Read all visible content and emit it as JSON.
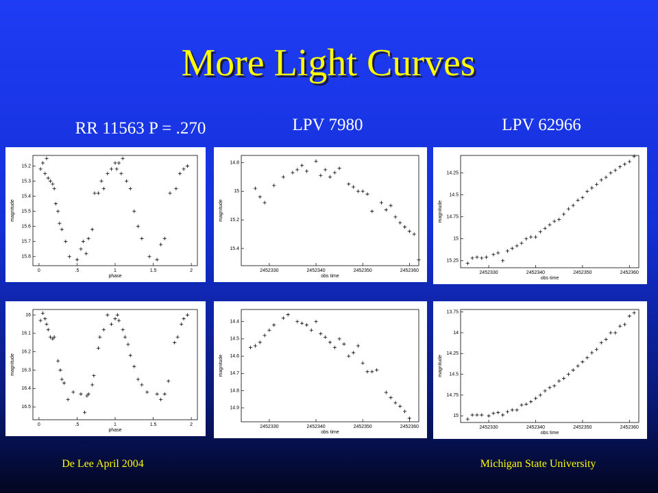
{
  "title": "More Light Curves",
  "column_labels": [
    "RR 11563 P = .270",
    "LPV 7980",
    "LPV 62966"
  ],
  "footer": {
    "left": "De Lee April 2004",
    "right": "Michigan State University"
  },
  "chart_data": [
    {
      "type": "scatter",
      "xlabel": "phase",
      "ylabel": "magnitude",
      "y_inverted": true,
      "xlim": [
        -0.08,
        2.08
      ],
      "xticks": [
        0,
        {
          "value": 0.5,
          "label": ".5"
        },
        1,
        1.5,
        2
      ],
      "ylim": [
        15.13,
        15.86
      ],
      "yticks": [
        15.2,
        15.3,
        15.4,
        15.5,
        15.6,
        15.7,
        15.8
      ],
      "x": [
        0.02,
        0.05,
        0.08,
        0.1,
        0.12,
        0.15,
        0.18,
        0.2,
        0.22,
        0.25,
        0.27,
        0.3,
        0.35,
        0.4,
        0.5,
        0.55,
        0.58,
        0.62,
        0.65,
        0.7,
        0.73,
        0.78,
        0.82,
        0.85,
        0.9,
        0.95,
        1.0,
        1.02,
        1.05,
        1.08,
        1.1,
        1.15,
        1.2,
        1.25,
        1.3,
        1.35,
        1.45,
        1.55,
        1.6,
        1.65,
        1.72,
        1.8,
        1.85,
        1.9,
        1.95
      ],
      "values": [
        15.22,
        15.18,
        15.25,
        15.15,
        15.28,
        15.3,
        15.32,
        15.35,
        15.45,
        15.5,
        15.58,
        15.62,
        15.7,
        15.8,
        15.82,
        15.75,
        15.7,
        15.78,
        15.68,
        15.62,
        15.38,
        15.38,
        15.3,
        15.35,
        15.25,
        15.22,
        15.18,
        15.22,
        15.18,
        15.25,
        15.15,
        15.3,
        15.35,
        15.5,
        15.6,
        15.68,
        15.8,
        15.82,
        15.72,
        15.68,
        15.38,
        15.35,
        15.25,
        15.22,
        15.2
      ]
    },
    {
      "type": "scatter",
      "xlabel": "obs time",
      "ylabel": "magnitude",
      "y_inverted": true,
      "xlim": [
        2452324,
        2452362
      ],
      "xticks": [
        2452330,
        2452340,
        2452350,
        2452360
      ],
      "ylim": [
        14.75,
        15.52
      ],
      "yticks": [
        14.8,
        15,
        15.2,
        15.4
      ],
      "x": [
        2452327,
        2452328,
        2452329,
        2452331,
        2452333,
        2452335,
        2452336,
        2452337,
        2452338,
        2452340,
        2452341,
        2452342,
        2452343,
        2452344,
        2452345,
        2452347,
        2452348,
        2452349,
        2452350,
        2452351,
        2452352,
        2452354,
        2452355,
        2452356,
        2452357,
        2452358,
        2452359,
        2452360,
        2452361,
        2452362
      ],
      "values": [
        14.98,
        15.04,
        15.08,
        14.96,
        14.9,
        14.87,
        14.85,
        14.82,
        14.86,
        14.79,
        14.89,
        14.85,
        14.9,
        14.87,
        14.84,
        14.95,
        14.97,
        15.0,
        15.0,
        15.02,
        15.14,
        15.08,
        15.13,
        15.1,
        15.18,
        15.22,
        15.25,
        15.28,
        15.3,
        15.48
      ]
    },
    {
      "type": "scatter",
      "xlabel": "obs time",
      "ylabel": "magnitude",
      "y_inverted": true,
      "xlim": [
        2452324,
        2452362
      ],
      "xticks": [
        2452330,
        2452340,
        2452350,
        2452360
      ],
      "ylim": [
        14.05,
        15.33
      ],
      "yticks": [
        14.25,
        14.5,
        14.75,
        15,
        15.25
      ],
      "x": [
        2452325.5,
        2452326.5,
        2452327.5,
        2452328.5,
        2452329.5,
        2452331,
        2452332,
        2452333,
        2452334,
        2452335,
        2452336,
        2452337,
        2452338,
        2452339,
        2452340,
        2452341,
        2452342,
        2452343,
        2452344,
        2452345,
        2452346,
        2452347,
        2452348,
        2452349,
        2452350,
        2452351,
        2452352,
        2452353,
        2452354,
        2452355,
        2452356,
        2452357,
        2452358,
        2452359,
        2452360,
        2452361
      ],
      "values": [
        15.28,
        15.22,
        15.21,
        15.22,
        15.21,
        15.18,
        15.16,
        15.25,
        15.14,
        15.11,
        15.08,
        15.05,
        15.0,
        14.98,
        14.98,
        14.92,
        14.88,
        14.84,
        14.8,
        14.78,
        14.72,
        14.66,
        14.62,
        14.56,
        14.53,
        14.46,
        14.42,
        14.38,
        14.33,
        14.3,
        14.25,
        14.22,
        14.18,
        14.15,
        14.12,
        14.06
      ]
    },
    {
      "type": "scatter",
      "xlabel": "phase",
      "ylabel": "magnitude",
      "y_inverted": true,
      "xlim": [
        -0.08,
        2.08
      ],
      "xticks": [
        0,
        {
          "value": 0.5,
          "label": ".5"
        },
        1,
        1.5,
        2
      ],
      "ylim": [
        15.97,
        16.57
      ],
      "yticks": [
        16,
        16.1,
        16.2,
        16.3,
        16.4,
        16.5
      ],
      "x": [
        0.02,
        0.05,
        0.08,
        0.1,
        0.12,
        0.15,
        0.18,
        0.2,
        0.25,
        0.28,
        0.3,
        0.33,
        0.38,
        0.45,
        0.55,
        0.6,
        0.63,
        0.65,
        0.7,
        0.72,
        0.78,
        0.8,
        0.85,
        0.9,
        0.95,
        1.0,
        1.03,
        1.05,
        1.1,
        1.13,
        1.17,
        1.2,
        1.25,
        1.3,
        1.35,
        1.42,
        1.55,
        1.6,
        1.65,
        1.7,
        1.78,
        1.82,
        1.87,
        1.9,
        1.95
      ],
      "values": [
        16.03,
        15.99,
        16.02,
        16.05,
        16.08,
        16.12,
        16.13,
        16.12,
        16.25,
        16.3,
        16.35,
        16.37,
        16.46,
        16.42,
        16.43,
        16.53,
        16.44,
        16.43,
        16.38,
        16.33,
        16.18,
        16.12,
        16.08,
        16.0,
        16.05,
        16.02,
        16.0,
        16.03,
        16.08,
        16.12,
        16.16,
        16.22,
        16.28,
        16.35,
        16.38,
        16.42,
        16.43,
        16.46,
        16.43,
        16.36,
        16.15,
        16.12,
        16.05,
        16.02,
        16.0
      ]
    },
    {
      "type": "scatter",
      "xlabel": "obs time",
      "ylabel": "magnitude",
      "y_inverted": true,
      "xlim": [
        2452324,
        2452362
      ],
      "xticks": [
        2452330,
        2452340,
        2452350,
        2452360
      ],
      "ylim": [
        14.33,
        14.98
      ],
      "yticks": [
        14.4,
        14.5,
        14.6,
        14.7,
        14.8,
        14.9
      ],
      "x": [
        2452326,
        2452327,
        2452328,
        2452329,
        2452330,
        2452331,
        2452333,
        2452334,
        2452336,
        2452337,
        2452338,
        2452339,
        2452340,
        2452341,
        2452342,
        2452343,
        2452344,
        2452345,
        2452346,
        2452347,
        2452348,
        2452349,
        2452350,
        2452351,
        2452352,
        2452353,
        2452355,
        2452356,
        2452357,
        2452358,
        2452359,
        2452360
      ],
      "values": [
        14.55,
        14.54,
        14.52,
        14.48,
        14.45,
        14.42,
        14.38,
        14.36,
        14.4,
        14.41,
        14.42,
        14.45,
        14.4,
        14.47,
        14.49,
        14.52,
        14.55,
        14.5,
        14.53,
        14.6,
        14.58,
        14.54,
        14.64,
        14.69,
        14.69,
        14.68,
        14.81,
        14.84,
        14.87,
        14.89,
        14.92,
        14.96
      ]
    },
    {
      "type": "scatter",
      "xlabel": "obs time",
      "ylabel": "magnitude",
      "y_inverted": true,
      "xlim": [
        2452324,
        2452362
      ],
      "xticks": [
        2452330,
        2452340,
        2452350,
        2452360
      ],
      "ylim": [
        13.72,
        15.08
      ],
      "yticks": [
        13.75,
        14,
        14.25,
        14.5,
        14.75,
        15
      ],
      "x": [
        2452325.5,
        2452326.5,
        2452327.5,
        2452328.5,
        2452330,
        2452331,
        2452332,
        2452333,
        2452334,
        2452335,
        2452336,
        2452337,
        2452338,
        2452339,
        2452340,
        2452341,
        2452342,
        2452343,
        2452344,
        2452345,
        2452346,
        2452347,
        2452348,
        2452349,
        2452350,
        2452351,
        2452352,
        2452353,
        2452354,
        2452355,
        2452356,
        2452357,
        2452358,
        2452359,
        2452360,
        2452361
      ],
      "values": [
        15.04,
        14.99,
        14.99,
        14.99,
        15.0,
        14.97,
        14.96,
        14.99,
        14.95,
        14.93,
        14.93,
        14.87,
        14.86,
        14.83,
        14.79,
        14.75,
        14.7,
        14.66,
        14.64,
        14.58,
        14.55,
        14.5,
        14.45,
        14.4,
        14.35,
        14.3,
        14.24,
        14.2,
        14.12,
        14.08,
        14.0,
        14.0,
        13.92,
        13.9,
        13.8,
        13.76
      ]
    }
  ]
}
